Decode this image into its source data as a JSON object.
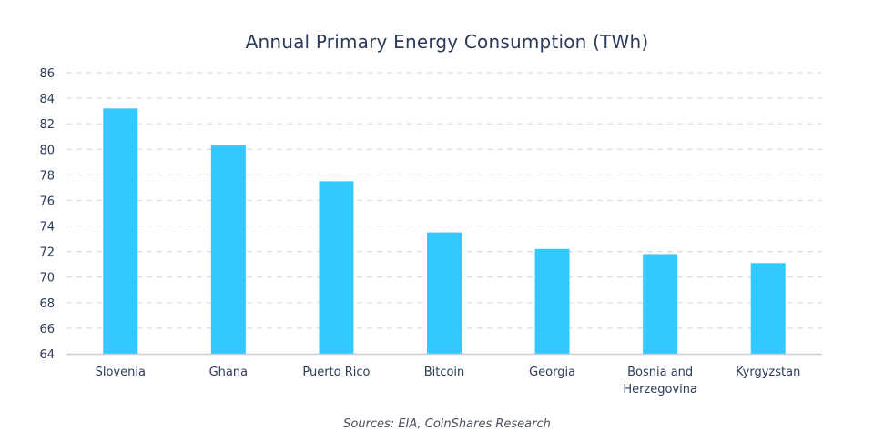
{
  "chart_data": {
    "type": "bar",
    "title": "Annual Primary Energy Consumption (TWh)",
    "categories": [
      "Slovenia",
      "Ghana",
      "Puerto Rico",
      "Bitcoin",
      "Georgia",
      "Bosnia and Herzegovina",
      "Kyrgyzstan"
    ],
    "category_lines": [
      [
        "Slovenia"
      ],
      [
        "Ghana"
      ],
      [
        "Puerto Rico"
      ],
      [
        "Bitcoin"
      ],
      [
        "Georgia"
      ],
      [
        "Bosnia and",
        "Herzegovina"
      ],
      [
        "Kyrgyzstan"
      ]
    ],
    "values": [
      83.2,
      80.3,
      77.5,
      73.5,
      72.2,
      71.8,
      71.1
    ],
    "ylim": [
      64,
      86
    ],
    "yticks": [
      64,
      66,
      68,
      70,
      72,
      74,
      76,
      78,
      80,
      82,
      84,
      86
    ],
    "xlabel": "",
    "ylabel": "",
    "grid": true,
    "legend": "none",
    "bar_color": "#33c9ff",
    "grid_color": "#d9dde3",
    "axis_color": "#c9ced6",
    "text_color": "#2c3a5a"
  },
  "source_note": "Sources: EIA, CoinShares Research"
}
